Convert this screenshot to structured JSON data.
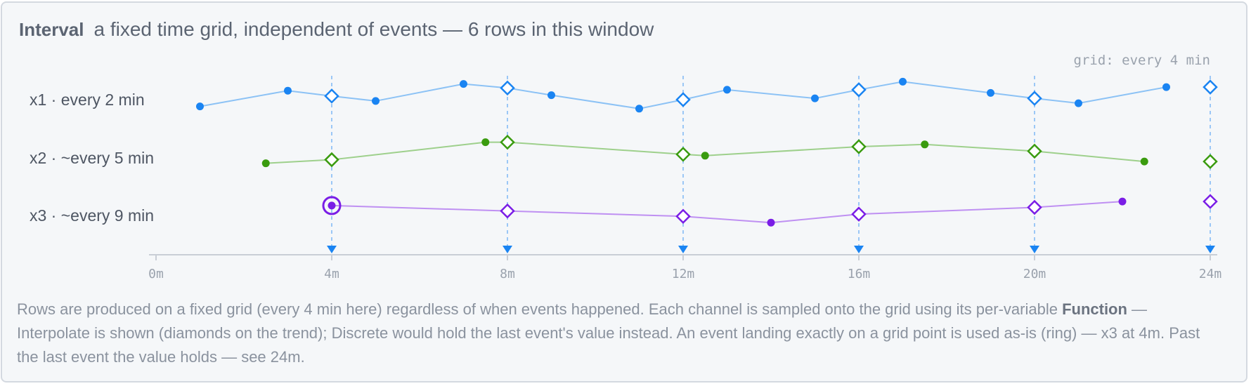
{
  "header": {
    "title": "Interval",
    "subtitle": "a fixed time grid, independent of events — 6 rows in this window"
  },
  "chart_data": {
    "type": "line",
    "grid_label": "grid: every 4 min",
    "x": {
      "min": 0,
      "max": 24,
      "ticks": [
        0,
        4,
        8,
        12,
        16,
        20,
        24
      ],
      "tick_labels": [
        "0m",
        "4m",
        "8m",
        "12m",
        "16m",
        "20m",
        "24m"
      ],
      "grid_times": [
        4,
        8,
        12,
        16,
        20,
        24
      ]
    },
    "series": [
      {
        "name": "x1 · every 2 min",
        "color": "#1a84f2",
        "line_color": "#8cc2f5",
        "events": [
          [
            1,
            0.35
          ],
          [
            3,
            0.7
          ],
          [
            5,
            0.47
          ],
          [
            7,
            0.85
          ],
          [
            9,
            0.6
          ],
          [
            11,
            0.3
          ],
          [
            13,
            0.72
          ],
          [
            15,
            0.53
          ],
          [
            17,
            0.9
          ],
          [
            19,
            0.65
          ],
          [
            21,
            0.42
          ],
          [
            23,
            0.78
          ]
        ],
        "grid_points": [
          [
            4,
            0.58
          ],
          [
            8,
            0.76
          ],
          [
            12,
            0.5
          ],
          [
            16,
            0.72
          ],
          [
            20,
            0.53
          ],
          [
            24,
            0.78
          ]
        ],
        "exact_hits": []
      },
      {
        "name": "x2 · ~every 5 min",
        "color": "#3a9b0f",
        "line_color": "#9ed08c",
        "events": [
          [
            2.5,
            0.38
          ],
          [
            7.5,
            0.85
          ],
          [
            12.5,
            0.55
          ],
          [
            17.5,
            0.8
          ],
          [
            22.5,
            0.42
          ]
        ],
        "grid_points": [
          [
            4,
            0.46
          ],
          [
            8,
            0.85
          ],
          [
            12,
            0.58
          ],
          [
            16,
            0.75
          ],
          [
            20,
            0.65
          ],
          [
            24,
            0.42
          ]
        ],
        "exact_hits": []
      },
      {
        "name": "x3 · ~every 9 min",
        "color": "#7a1de6",
        "line_color": "#bf90f2",
        "events": [
          [
            4,
            0.72
          ],
          [
            14,
            0.34
          ],
          [
            22,
            0.81
          ]
        ],
        "grid_points": [
          [
            8,
            0.6
          ],
          [
            12,
            0.48
          ],
          [
            16,
            0.53
          ],
          [
            20,
            0.68
          ],
          [
            24,
            0.81
          ]
        ],
        "exact_hits": [
          [
            4,
            0.72
          ]
        ]
      }
    ]
  },
  "caption": {
    "part1": "Rows are produced on a fixed grid (every 4 min here) regardless of when events happened. Each channel is sampled onto the grid using its per-variable ",
    "bold": "Function",
    "part2": " — Interpolate is shown (diamonds on the trend); Discrete would hold the last event's value instead. An event landing exactly on a grid point is used as-is (ring) — x3 at 4m. Past the last event the value holds — see 24m."
  },
  "colors": {
    "grid_marker": "#1a84f2",
    "axis": "#c9ced6",
    "tick_label": "#9aa2ad",
    "row_label": "#4e5663"
  }
}
